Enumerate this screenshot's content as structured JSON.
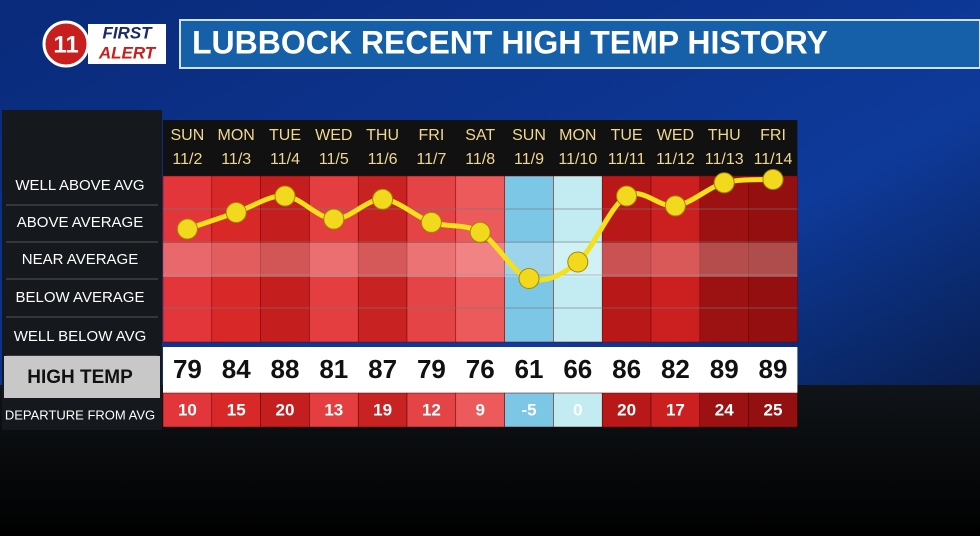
{
  "header": {
    "logo": {
      "number": "11",
      "first": "FIRST",
      "alert": "ALERT"
    },
    "title": "LUBBOCK RECENT HIGH TEMP HISTORY"
  },
  "row_labels": [
    "WELL ABOVE AVG",
    "ABOVE AVERAGE",
    "NEAR AVERAGE",
    "BELOW AVERAGE",
    "WELL BELOW AVG",
    "HIGH TEMP",
    "DEPARTURE FROM AVG"
  ],
  "days": [
    {
      "day": "SUN",
      "date": "11/2",
      "high": 79,
      "departure": 10,
      "color": "#e2363a"
    },
    {
      "day": "MON",
      "date": "11/3",
      "high": 84,
      "departure": 15,
      "color": "#d92828"
    },
    {
      "day": "TUE",
      "date": "11/4",
      "high": 88,
      "departure": 20,
      "color": "#c41e1e"
    },
    {
      "day": "WED",
      "date": "11/5",
      "high": 81,
      "departure": 13,
      "color": "#e43e40"
    },
    {
      "day": "THU",
      "date": "11/6",
      "high": 87,
      "departure": 19,
      "color": "#c92222"
    },
    {
      "day": "FRI",
      "date": "11/7",
      "high": 79,
      "departure": 12,
      "color": "#e44446"
    },
    {
      "day": "SAT",
      "date": "11/8",
      "high": 76,
      "departure": 9,
      "color": "#ec5a5c"
    },
    {
      "day": "SUN",
      "date": "11/9",
      "high": 61,
      "departure": -5,
      "color": "#7cc6e6"
    },
    {
      "day": "MON",
      "date": "11/10",
      "high": 66,
      "departure": 0,
      "color": "#c2ecf2"
    },
    {
      "day": "TUE",
      "date": "11/11",
      "high": 86,
      "departure": 20,
      "color": "#b81818"
    },
    {
      "day": "WED",
      "date": "11/12",
      "high": 82,
      "departure": 17,
      "color": "#cc2020"
    },
    {
      "day": "THU",
      "date": "11/13",
      "high": 89,
      "departure": 24,
      "color": "#9c1212"
    },
    {
      "day": "FRI",
      "date": "11/14",
      "high": 89,
      "departure": 25,
      "color": "#941010"
    }
  ]
}
